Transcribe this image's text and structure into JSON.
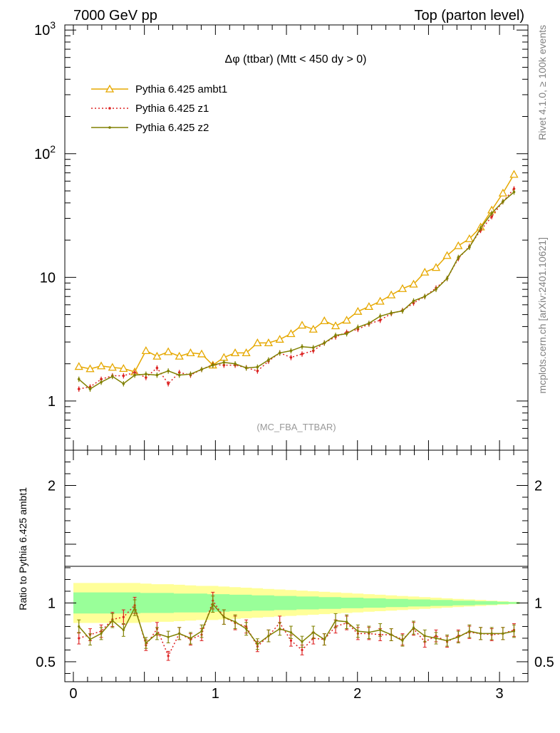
{
  "header": {
    "left": "7000 GeV pp",
    "right": "Top (parton level)"
  },
  "side_labels": {
    "rivet": "Rivet 4.1.0, ≥ 100k events",
    "mcplots": "mcplots.cern.ch [arXiv:2401.10621]"
  },
  "chart_data": [
    {
      "panel": "main",
      "type": "line",
      "title": "Δφ (ttbar) (Mtt < 450 dy > 0)",
      "watermark": "(MC_FBA_TTBAR)",
      "yscale": "log",
      "ylim": [
        0.4,
        1100
      ],
      "xlim": [
        -0.06,
        3.2
      ],
      "ytick_labels": [
        {
          "value": 1,
          "label": "1"
        },
        {
          "value": 10,
          "label": "10"
        },
        {
          "value": 100,
          "label": "10²"
        },
        {
          "value": 1000,
          "label": "10³"
        }
      ],
      "legend_position": "top-left",
      "x": [
        0.039,
        0.118,
        0.196,
        0.275,
        0.353,
        0.432,
        0.511,
        0.589,
        0.668,
        0.746,
        0.825,
        0.903,
        0.982,
        1.06,
        1.139,
        1.217,
        1.296,
        1.374,
        1.453,
        1.532,
        1.61,
        1.689,
        1.767,
        1.846,
        1.924,
        2.003,
        2.081,
        2.16,
        2.238,
        2.317,
        2.395,
        2.474,
        2.553,
        2.631,
        2.71,
        2.788,
        2.867,
        2.945,
        3.024,
        3.102
      ],
      "series": [
        {
          "name": "Pythia 6.425 ambt1",
          "color": "#e6a800",
          "marker": "open-triangle",
          "values": [
            1.9,
            1.82,
            1.92,
            1.87,
            1.83,
            1.72,
            2.55,
            2.3,
            2.5,
            2.3,
            2.45,
            2.4,
            1.95,
            2.25,
            2.45,
            2.45,
            2.95,
            2.95,
            3.15,
            3.5,
            4.1,
            3.8,
            4.45,
            4.05,
            4.5,
            5.3,
            5.8,
            6.4,
            7.2,
            8.1,
            8.8,
            11.0,
            12.0,
            15.0,
            18.0,
            20.5,
            25.5,
            35.0,
            48.0,
            68.0
          ]
        },
        {
          "name": "Pythia 6.425 z1",
          "color": "#dd2222",
          "marker": "dot",
          "line_style": "dotted",
          "values": [
            1.25,
            1.3,
            1.5,
            1.6,
            1.6,
            1.7,
            1.55,
            1.85,
            1.38,
            1.7,
            1.62,
            1.8,
            1.97,
            1.95,
            1.95,
            1.86,
            1.75,
            2.1,
            2.45,
            2.25,
            2.4,
            2.55,
            2.95,
            3.3,
            3.6,
            3.8,
            4.2,
            4.5,
            5.1,
            5.4,
            6.2,
            7.0,
            8.2,
            9.8,
            14.2,
            17.8,
            24.0,
            31.0,
            41.0,
            52.0
          ]
        },
        {
          "name": "Pythia 6.425 z2",
          "color": "#808000",
          "marker": "dot",
          "values": [
            1.5,
            1.25,
            1.42,
            1.58,
            1.38,
            1.62,
            1.65,
            1.62,
            1.75,
            1.62,
            1.65,
            1.8,
            1.95,
            2.05,
            2.0,
            1.85,
            1.88,
            2.15,
            2.45,
            2.55,
            2.75,
            2.7,
            2.95,
            3.4,
            3.5,
            3.95,
            4.25,
            4.85,
            5.15,
            5.35,
            6.45,
            7.0,
            8.0,
            9.8,
            14.5,
            17.5,
            25.0,
            33.0,
            41.0,
            49.0
          ]
        }
      ]
    },
    {
      "panel": "ratio",
      "type": "line",
      "ylabel": "Ratio to Pythia 6.425 ambt1",
      "xlabel": "",
      "ylim": [
        0.33,
        2.3
      ],
      "xlim": [
        -0.06,
        3.2
      ],
      "xtick_labels": [
        {
          "value": 0,
          "label": "0"
        },
        {
          "value": 1,
          "label": "1"
        },
        {
          "value": 2,
          "label": "2"
        },
        {
          "value": 3,
          "label": "3"
        }
      ],
      "ytick_labels": [
        {
          "value": 0.5,
          "label": "0.5"
        },
        {
          "value": 1,
          "label": "1"
        },
        {
          "value": 2,
          "label": "2"
        }
      ],
      "x": [
        0.039,
        0.118,
        0.196,
        0.275,
        0.353,
        0.432,
        0.511,
        0.589,
        0.668,
        0.746,
        0.825,
        0.903,
        0.982,
        1.06,
        1.139,
        1.217,
        1.296,
        1.374,
        1.453,
        1.532,
        1.61,
        1.689,
        1.767,
        1.846,
        1.924,
        2.003,
        2.081,
        2.16,
        2.238,
        2.317,
        2.395,
        2.474,
        2.553,
        2.631,
        2.71,
        2.788,
        2.867,
        2.945,
        3.024,
        3.102
      ],
      "band_outer": [
        0.17,
        0.17,
        0.17,
        0.17,
        0.17,
        0.17,
        0.165,
        0.16,
        0.16,
        0.155,
        0.15,
        0.145,
        0.145,
        0.14,
        0.135,
        0.13,
        0.125,
        0.12,
        0.115,
        0.11,
        0.105,
        0.1,
        0.095,
        0.09,
        0.085,
        0.08,
        0.075,
        0.07,
        0.065,
        0.06,
        0.055,
        0.05,
        0.045,
        0.04,
        0.035,
        0.03,
        0.025,
        0.02,
        0.015,
        0.01
      ],
      "band_inner": [
        0.09,
        0.09,
        0.09,
        0.09,
        0.09,
        0.09,
        0.085,
        0.085,
        0.085,
        0.08,
        0.08,
        0.08,
        0.075,
        0.075,
        0.07,
        0.07,
        0.065,
        0.065,
        0.06,
        0.06,
        0.055,
        0.055,
        0.05,
        0.05,
        0.045,
        0.045,
        0.04,
        0.04,
        0.035,
        0.035,
        0.03,
        0.03,
        0.025,
        0.025,
        0.02,
        0.02,
        0.015,
        0.015,
        0.01,
        0.008
      ],
      "band_outer_color": "#ffff99",
      "band_inner_color": "#99ff99",
      "series": [
        {
          "name": "Pythia 6.425 z1",
          "color": "#dd2222",
          "line_style": "dotted",
          "values": [
            0.7,
            0.73,
            0.76,
            0.86,
            0.88,
            0.98,
            0.64,
            0.78,
            0.55,
            0.74,
            0.69,
            0.73,
            1.02,
            0.88,
            0.83,
            0.8,
            0.63,
            0.72,
            0.83,
            0.68,
            0.6,
            0.7,
            0.69,
            0.8,
            0.83,
            0.74,
            0.74,
            0.73,
            0.73,
            0.69,
            0.78,
            0.67,
            0.72,
            0.67,
            0.72,
            0.75,
            0.74,
            0.73,
            0.74,
            0.77
          ]
        },
        {
          "name": "Pythia 6.425 z2",
          "color": "#808000",
          "values": [
            0.8,
            0.69,
            0.74,
            0.85,
            0.77,
            0.96,
            0.66,
            0.74,
            0.71,
            0.74,
            0.7,
            0.76,
            0.99,
            0.88,
            0.84,
            0.78,
            0.65,
            0.72,
            0.78,
            0.75,
            0.67,
            0.75,
            0.69,
            0.85,
            0.84,
            0.76,
            0.75,
            0.77,
            0.73,
            0.68,
            0.79,
            0.72,
            0.7,
            0.68,
            0.71,
            0.76,
            0.74,
            0.74,
            0.74,
            0.76
          ]
        }
      ]
    }
  ]
}
